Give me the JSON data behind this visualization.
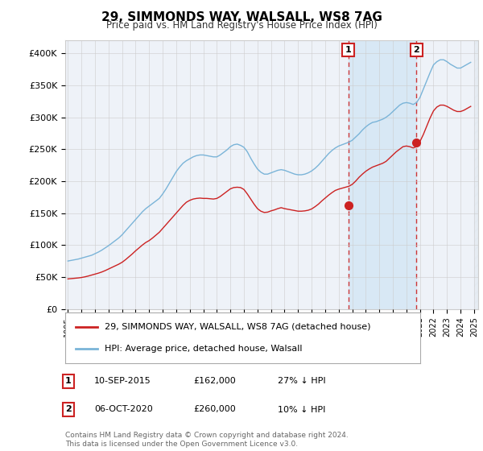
{
  "title": "29, SIMMONDS WAY, WALSALL, WS8 7AG",
  "subtitle": "Price paid vs. HM Land Registry's House Price Index (HPI)",
  "hpi_color": "#7ab4d8",
  "price_color": "#cc2222",
  "marker_color": "#cc2222",
  "background_color": "#ffffff",
  "plot_bg_color": "#eef2f8",
  "shade_color": "#d8e8f5",
  "hatch_color": "#cccccc",
  "grid_color": "#cccccc",
  "ylim": [
    0,
    420000
  ],
  "yticks": [
    0,
    50000,
    100000,
    150000,
    200000,
    250000,
    300000,
    350000,
    400000
  ],
  "ytick_labels": [
    "£0",
    "£50K",
    "£100K",
    "£150K",
    "£200K",
    "£250K",
    "£300K",
    "£350K",
    "£400K"
  ],
  "sale1_year": 2015.7,
  "sale1_price": 162000,
  "sale2_year": 2020.75,
  "sale2_price": 260000,
  "legend_line1": "29, SIMMONDS WAY, WALSALL, WS8 7AG (detached house)",
  "legend_line2": "HPI: Average price, detached house, Walsall",
  "footer": "Contains HM Land Registry data © Crown copyright and database right 2024.\nThis data is licensed under the Open Government Licence v3.0.",
  "hpi_data_years": [
    1995.0,
    1995.25,
    1995.5,
    1995.75,
    1996.0,
    1996.25,
    1996.5,
    1996.75,
    1997.0,
    1997.25,
    1997.5,
    1997.75,
    1998.0,
    1998.25,
    1998.5,
    1998.75,
    1999.0,
    1999.25,
    1999.5,
    1999.75,
    2000.0,
    2000.25,
    2000.5,
    2000.75,
    2001.0,
    2001.25,
    2001.5,
    2001.75,
    2002.0,
    2002.25,
    2002.5,
    2002.75,
    2003.0,
    2003.25,
    2003.5,
    2003.75,
    2004.0,
    2004.25,
    2004.5,
    2004.75,
    2005.0,
    2005.25,
    2005.5,
    2005.75,
    2006.0,
    2006.25,
    2006.5,
    2006.75,
    2007.0,
    2007.25,
    2007.5,
    2007.75,
    2008.0,
    2008.25,
    2008.5,
    2008.75,
    2009.0,
    2009.25,
    2009.5,
    2009.75,
    2010.0,
    2010.25,
    2010.5,
    2010.75,
    2011.0,
    2011.25,
    2011.5,
    2011.75,
    2012.0,
    2012.25,
    2012.5,
    2012.75,
    2013.0,
    2013.25,
    2013.5,
    2013.75,
    2014.0,
    2014.25,
    2014.5,
    2014.75,
    2015.0,
    2015.25,
    2015.5,
    2015.75,
    2016.0,
    2016.25,
    2016.5,
    2016.75,
    2017.0,
    2017.25,
    2017.5,
    2017.75,
    2018.0,
    2018.25,
    2018.5,
    2018.75,
    2019.0,
    2019.25,
    2019.5,
    2019.75,
    2020.0,
    2020.25,
    2020.5,
    2020.75,
    2021.0,
    2021.25,
    2021.5,
    2021.75,
    2022.0,
    2022.25,
    2022.5,
    2022.75,
    2023.0,
    2023.25,
    2023.5,
    2023.75,
    2024.0,
    2024.25,
    2024.5,
    2024.75
  ],
  "hpi_values": [
    75000,
    76000,
    77000,
    78000,
    79500,
    81000,
    82500,
    84000,
    86500,
    89000,
    92000,
    95500,
    99000,
    103000,
    107000,
    111000,
    116000,
    122000,
    128000,
    134000,
    140000,
    146000,
    152000,
    157000,
    161000,
    165000,
    169000,
    173000,
    180000,
    188000,
    197000,
    206000,
    215000,
    222000,
    228000,
    232000,
    235000,
    238000,
    240000,
    241000,
    241000,
    240000,
    239000,
    238000,
    238000,
    241000,
    245000,
    249000,
    254000,
    257000,
    258000,
    256000,
    253000,
    246000,
    236000,
    227000,
    219000,
    214000,
    211000,
    211000,
    213000,
    215000,
    217000,
    218000,
    217000,
    215000,
    213000,
    211000,
    210000,
    210000,
    211000,
    213000,
    216000,
    220000,
    225000,
    231000,
    237000,
    243000,
    248000,
    252000,
    255000,
    257000,
    259000,
    261000,
    264000,
    269000,
    274000,
    280000,
    285000,
    289000,
    292000,
    293000,
    295000,
    297000,
    300000,
    304000,
    309000,
    314000,
    319000,
    322000,
    323000,
    322000,
    320000,
    323000,
    331000,
    344000,
    357000,
    370000,
    382000,
    387000,
    390000,
    390000,
    387000,
    383000,
    380000,
    377000,
    377000,
    380000,
    383000,
    386000
  ],
  "price_index_values": [
    47000,
    47500,
    48000,
    48500,
    49200,
    50200,
    51500,
    53000,
    54500,
    56000,
    57800,
    60000,
    62500,
    65000,
    67500,
    70000,
    73000,
    77000,
    81500,
    86000,
    91000,
    95500,
    100000,
    104000,
    107000,
    111000,
    115500,
    120000,
    126000,
    132000,
    138000,
    144000,
    150000,
    156000,
    162000,
    167000,
    170000,
    172000,
    173000,
    173500,
    173000,
    173000,
    172500,
    172000,
    173000,
    176000,
    180000,
    184000,
    188000,
    190000,
    190500,
    190000,
    187000,
    180000,
    172000,
    164000,
    157000,
    153000,
    151000,
    151500,
    153500,
    155000,
    157000,
    158500,
    157000,
    156000,
    155000,
    154000,
    153000,
    153000,
    153500,
    154500,
    156500,
    160000,
    164000,
    169000,
    173500,
    178000,
    182000,
    185500,
    187500,
    189000,
    190500,
    192000,
    195000,
    200000,
    206000,
    211000,
    215500,
    219000,
    222000,
    224000,
    226000,
    228000,
    231000,
    236000,
    241000,
    246000,
    250000,
    254000,
    255000,
    254000,
    252000,
    254000,
    262000,
    273000,
    286000,
    299000,
    310000,
    316000,
    319000,
    319000,
    317000,
    314000,
    311000,
    309000,
    309000,
    311000,
    314000,
    317000
  ]
}
